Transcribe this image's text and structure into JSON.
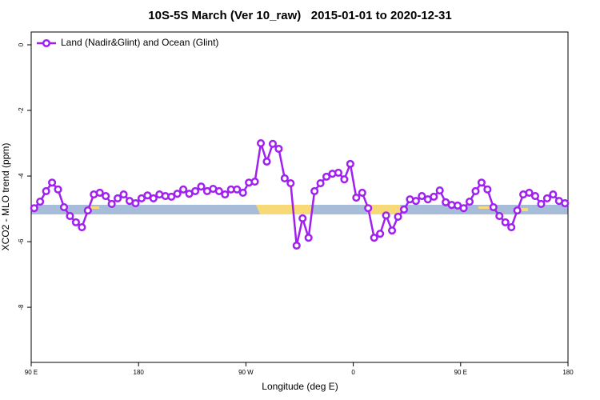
{
  "chart_data": {
    "type": "line",
    "title": "10S-5S March (Ver 10_raw)   2015-01-01 to 2020-12-31",
    "x_label": "Longitude (deg E)",
    "y_label": "XCO2 - MLO trend (ppm)",
    "legend": "top-left",
    "xlim": [
      90,
      540
    ],
    "ylim": [
      -9.68,
      0.39
    ],
    "xticks": [
      {
        "value": 90,
        "label": "90 E"
      },
      180,
      {
        "value": 270,
        "label": "90 W"
      },
      {
        "value": 360,
        "label": "0"
      },
      {
        "value": 450,
        "label": "90 E"
      },
      {
        "value": 540,
        "label": "180"
      }
    ],
    "yticks": [
      0,
      -2,
      -4,
      -6,
      -8
    ],
    "x": [
      92.5,
      97.5,
      102.5,
      107.5,
      112.5,
      117.5,
      122.5,
      127.5,
      132.5,
      137.5,
      142.5,
      147.5,
      152.5,
      157.5,
      162.5,
      167.5,
      172.5,
      177.5,
      182.5,
      187.5,
      192.5,
      197.5,
      202.5,
      207.5,
      212.5,
      217.5,
      222.5,
      227.5,
      232.5,
      237.5,
      242.5,
      247.5,
      252.5,
      257.5,
      262.5,
      267.5,
      272.5,
      277.5,
      282.5,
      287.5,
      292.5,
      297.5,
      302.5,
      307.5,
      312.5,
      317.5,
      322.5,
      327.5,
      332.5,
      337.5,
      342.5,
      347.5,
      352.5,
      357.5,
      362.5,
      367.5,
      372.5,
      377.5,
      382.5,
      387.5,
      392.5,
      397.5,
      402.5,
      407.5,
      412.5,
      417.5,
      422.5,
      427.5,
      432.5,
      437.5,
      442.5,
      447.5,
      452.5,
      457.5,
      462.5,
      467.5,
      472.5,
      477.5,
      482.5,
      487.5,
      492.5,
      497.5,
      502.5,
      507.5,
      512.5,
      517.5,
      522.5,
      527.5,
      532.5,
      537.5
    ],
    "series": [
      {
        "name": "Land (Nadir&Glint) and Ocean (Glint)",
        "color": "#a020f0",
        "values": [
          -4.98,
          -4.78,
          -4.46,
          -4.2,
          -4.41,
          -4.95,
          -5.22,
          -5.41,
          -5.56,
          -5.05,
          -4.56,
          -4.51,
          -4.61,
          -4.85,
          -4.68,
          -4.56,
          -4.76,
          -4.83,
          -4.68,
          -4.59,
          -4.68,
          -4.56,
          -4.61,
          -4.63,
          -4.54,
          -4.41,
          -4.54,
          -4.46,
          -4.32,
          -4.46,
          -4.39,
          -4.46,
          -4.56,
          -4.41,
          -4.41,
          -4.51,
          -4.2,
          -4.17,
          -3.0,
          -3.56,
          -3.02,
          -3.17,
          -4.07,
          -4.22,
          -6.12,
          -5.29,
          -5.88,
          -4.46,
          -4.22,
          -4.02,
          -3.93,
          -3.9,
          -4.1,
          -3.63,
          -4.66,
          -4.51,
          -4.98,
          -5.88,
          -5.76,
          -5.2,
          -5.66,
          -5.24,
          -5.02,
          -4.71,
          -4.76,
          -4.61,
          -4.71,
          -4.63,
          -4.44,
          -4.8,
          -4.88,
          -4.9,
          -4.98,
          -4.78,
          -4.46,
          -4.2,
          -4.41,
          -4.95,
          -5.22,
          -5.41,
          -5.56,
          -5.05,
          -4.56,
          -4.51,
          -4.61,
          -4.85,
          -4.68,
          -4.56,
          -4.76,
          -4.83
        ]
      }
    ]
  }
}
